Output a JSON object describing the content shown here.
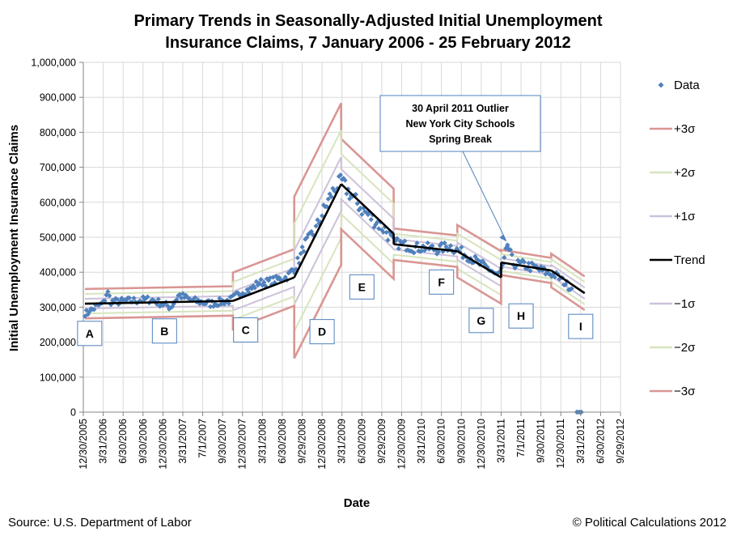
{
  "chart_data": {
    "type": "scatter",
    "title_lines": [
      "Primary Trends in Seasonally-Adjusted Initial Unemployment",
      "Insurance Claims, 7 January 2006 - 25 February 2012"
    ],
    "xlabel": "Date",
    "ylabel": "Initial Unemployment Insurance Claims",
    "ylim": [
      0,
      1000000
    ],
    "yticks": [
      "0",
      "100,000",
      "200,000",
      "300,000",
      "400,000",
      "500,000",
      "600,000",
      "700,000",
      "800,000",
      "900,000",
      "1,000,000"
    ],
    "xlim_years": [
      2006.0,
      2012.75
    ],
    "xticks": [
      {
        "label": "12/30/2005",
        "t": 2006.0
      },
      {
        "label": "3/31/2006",
        "t": 2006.25
      },
      {
        "label": "6/30/2006",
        "t": 2006.5
      },
      {
        "label": "9/30/2006",
        "t": 2006.75
      },
      {
        "label": "12/30/2006",
        "t": 2007.0
      },
      {
        "label": "3/31/2007",
        "t": 2007.25
      },
      {
        "label": "7/1/2007",
        "t": 2007.5
      },
      {
        "label": "9/30/2007",
        "t": 2007.75
      },
      {
        "label": "12/30/2007",
        "t": 2008.0
      },
      {
        "label": "3/31/2008",
        "t": 2008.25
      },
      {
        "label": "6/30/2008",
        "t": 2008.5
      },
      {
        "label": "9/29/2008",
        "t": 2008.75
      },
      {
        "label": "12/30/2008",
        "t": 2009.0
      },
      {
        "label": "3/31/2009",
        "t": 2009.25
      },
      {
        "label": "6/30/2009",
        "t": 2009.5
      },
      {
        "label": "9/29/2009",
        "t": 2009.75
      },
      {
        "label": "12/30/2009",
        "t": 2010.0
      },
      {
        "label": "3/31/2010",
        "t": 2010.25
      },
      {
        "label": "6/30/2010",
        "t": 2010.5
      },
      {
        "label": "9/30/2010",
        "t": 2010.75
      },
      {
        "label": "12/30/2010",
        "t": 2011.0
      },
      {
        "label": "3/31/2011",
        "t": 2011.25
      },
      {
        "label": "7/1/2011",
        "t": 2011.5
      },
      {
        "label": "9/30/2011",
        "t": 2011.75
      },
      {
        "label": "12/30/2011",
        "t": 2012.0
      },
      {
        "label": "3/31/2012",
        "t": 2012.25
      },
      {
        "label": "6/30/2012",
        "t": 2012.5
      },
      {
        "label": "9/29/2012",
        "t": 2012.75
      }
    ],
    "trend_segments": [
      {
        "t0": 2006.02,
        "t1": 2007.88,
        "v0": 310000,
        "v1": 318000,
        "sigma": 14000
      },
      {
        "t0": 2007.88,
        "t1": 2008.65,
        "v0": 318000,
        "v1": 385000,
        "sigma": 27000
      },
      {
        "t0": 2008.65,
        "t1": 2009.24,
        "v0": 385000,
        "v1": 652000,
        "sigma": 77000
      },
      {
        "t0": 2009.24,
        "t1": 2009.9,
        "v0": 652000,
        "v1": 510000,
        "sigma": 43000
      },
      {
        "t0": 2009.9,
        "t1": 2010.7,
        "v0": 480000,
        "v1": 460000,
        "sigma": 15000
      },
      {
        "t0": 2010.7,
        "t1": 2011.25,
        "v0": 460000,
        "v1": 385000,
        "sigma": 25000
      },
      {
        "t0": 2011.25,
        "t1": 2011.88,
        "v0": 428000,
        "v1": 405000,
        "sigma": 12000
      },
      {
        "t0": 2011.88,
        "t1": 2012.3,
        "v0": 405000,
        "v1": 340000,
        "sigma": 16000
      }
    ],
    "anchor_points": [
      {
        "t": 2006.02,
        "v": 285000
      },
      {
        "t": 2006.05,
        "v": 280000
      },
      {
        "t": 2006.08,
        "v": 295000
      },
      {
        "t": 2006.1,
        "v": 290000
      },
      {
        "t": 2006.15,
        "v": 300000
      },
      {
        "t": 2006.2,
        "v": 305000
      },
      {
        "t": 2006.25,
        "v": 310000
      },
      {
        "t": 2006.3,
        "v": 345000
      },
      {
        "t": 2006.35,
        "v": 315000
      },
      {
        "t": 2006.6,
        "v": 318000
      },
      {
        "t": 2006.85,
        "v": 322000
      },
      {
        "t": 2007.1,
        "v": 300000
      },
      {
        "t": 2007.2,
        "v": 335000
      },
      {
        "t": 2007.35,
        "v": 320000
      },
      {
        "t": 2007.6,
        "v": 310000
      },
      {
        "t": 2007.85,
        "v": 320000
      },
      {
        "t": 2008.0,
        "v": 345000
      },
      {
        "t": 2008.1,
        "v": 350000
      },
      {
        "t": 2008.2,
        "v": 370000
      },
      {
        "t": 2008.3,
        "v": 372000
      },
      {
        "t": 2008.45,
        "v": 380000
      },
      {
        "t": 2008.55,
        "v": 385000
      },
      {
        "t": 2008.65,
        "v": 410000
      },
      {
        "t": 2008.72,
        "v": 440000
      },
      {
        "t": 2008.78,
        "v": 480000
      },
      {
        "t": 2008.85,
        "v": 500000
      },
      {
        "t": 2008.92,
        "v": 520000
      },
      {
        "t": 2009.0,
        "v": 565000
      },
      {
        "t": 2009.05,
        "v": 590000
      },
      {
        "t": 2009.12,
        "v": 625000
      },
      {
        "t": 2009.2,
        "v": 650000
      },
      {
        "t": 2009.25,
        "v": 660000
      },
      {
        "t": 2009.3,
        "v": 640000
      },
      {
        "t": 2009.4,
        "v": 610000
      },
      {
        "t": 2009.5,
        "v": 580000
      },
      {
        "t": 2009.6,
        "v": 560000
      },
      {
        "t": 2009.7,
        "v": 540000
      },
      {
        "t": 2009.8,
        "v": 520000
      },
      {
        "t": 2009.9,
        "v": 485000
      },
      {
        "t": 2010.0,
        "v": 480000
      },
      {
        "t": 2010.15,
        "v": 470000
      },
      {
        "t": 2010.3,
        "v": 470000
      },
      {
        "t": 2010.45,
        "v": 465000
      },
      {
        "t": 2010.6,
        "v": 475000
      },
      {
        "t": 2010.72,
        "v": 460000
      },
      {
        "t": 2010.85,
        "v": 445000
      },
      {
        "t": 2011.0,
        "v": 420000
      },
      {
        "t": 2011.1,
        "v": 410000
      },
      {
        "t": 2011.2,
        "v": 390000
      },
      {
        "t": 2011.27,
        "v": 410000
      },
      {
        "t": 2011.33,
        "v": 478000
      },
      {
        "t": 2011.4,
        "v": 425000
      },
      {
        "t": 2011.55,
        "v": 420000
      },
      {
        "t": 2011.7,
        "v": 410000
      },
      {
        "t": 2011.8,
        "v": 400000
      },
      {
        "t": 2011.95,
        "v": 390000
      },
      {
        "t": 2012.05,
        "v": 370000
      },
      {
        "t": 2012.1,
        "v": 360000
      },
      {
        "t": 2012.14,
        "v": 355000
      },
      {
        "t": 2012.2,
        "v": 0
      },
      {
        "t": 2012.22,
        "v": 0
      },
      {
        "t": 2012.24,
        "v": 0
      },
      {
        "t": 2012.26,
        "v": 0
      }
    ],
    "legend": [
      {
        "label": "Data",
        "kind": "marker",
        "color": "#4f81bd"
      },
      {
        "label": "+3σ",
        "kind": "line",
        "color": "#d99694"
      },
      {
        "label": "+2σ",
        "kind": "line",
        "color": "#d7e4bd"
      },
      {
        "label": "+1σ",
        "kind": "line",
        "color": "#ccc1da"
      },
      {
        "label": "Trend",
        "kind": "line",
        "color": "#000000"
      },
      {
        "label": "−1σ",
        "kind": "line",
        "color": "#ccc1da"
      },
      {
        "label": "−2σ",
        "kind": "line",
        "color": "#d7e4bd"
      },
      {
        "label": "−3σ",
        "kind": "line",
        "color": "#d99694"
      }
    ],
    "phase_labels": [
      {
        "label": "A",
        "t": 2006.08,
        "v": 225000
      },
      {
        "label": "B",
        "t": 2007.02,
        "v": 232000
      },
      {
        "label": "C",
        "t": 2008.04,
        "v": 235000
      },
      {
        "label": "D",
        "t": 2009.0,
        "v": 230000
      },
      {
        "label": "E",
        "t": 2009.5,
        "v": 358000
      },
      {
        "label": "F",
        "t": 2010.5,
        "v": 372000
      },
      {
        "label": "G",
        "t": 2011.0,
        "v": 262000
      },
      {
        "label": "H",
        "t": 2011.5,
        "v": 275000
      },
      {
        "label": "I",
        "t": 2012.25,
        "v": 245000
      }
    ],
    "annotation": {
      "lines": [
        "30 April 2011 Outlier",
        "New York City Schools",
        "Spring Break"
      ],
      "target_t": 2011.33,
      "target_v": 478000
    },
    "colors": {
      "data": "#4f81bd",
      "sigma3": "#d99694",
      "sigma2": "#d7e4bd",
      "sigma1": "#ccc1da",
      "trend": "#000000",
      "grid": "#d9d9d9",
      "annotation_border": "#4f81bd"
    }
  },
  "footer": {
    "source": "Source: U.S. Department of Labor",
    "copyright": "© Political Calculations 2012"
  }
}
